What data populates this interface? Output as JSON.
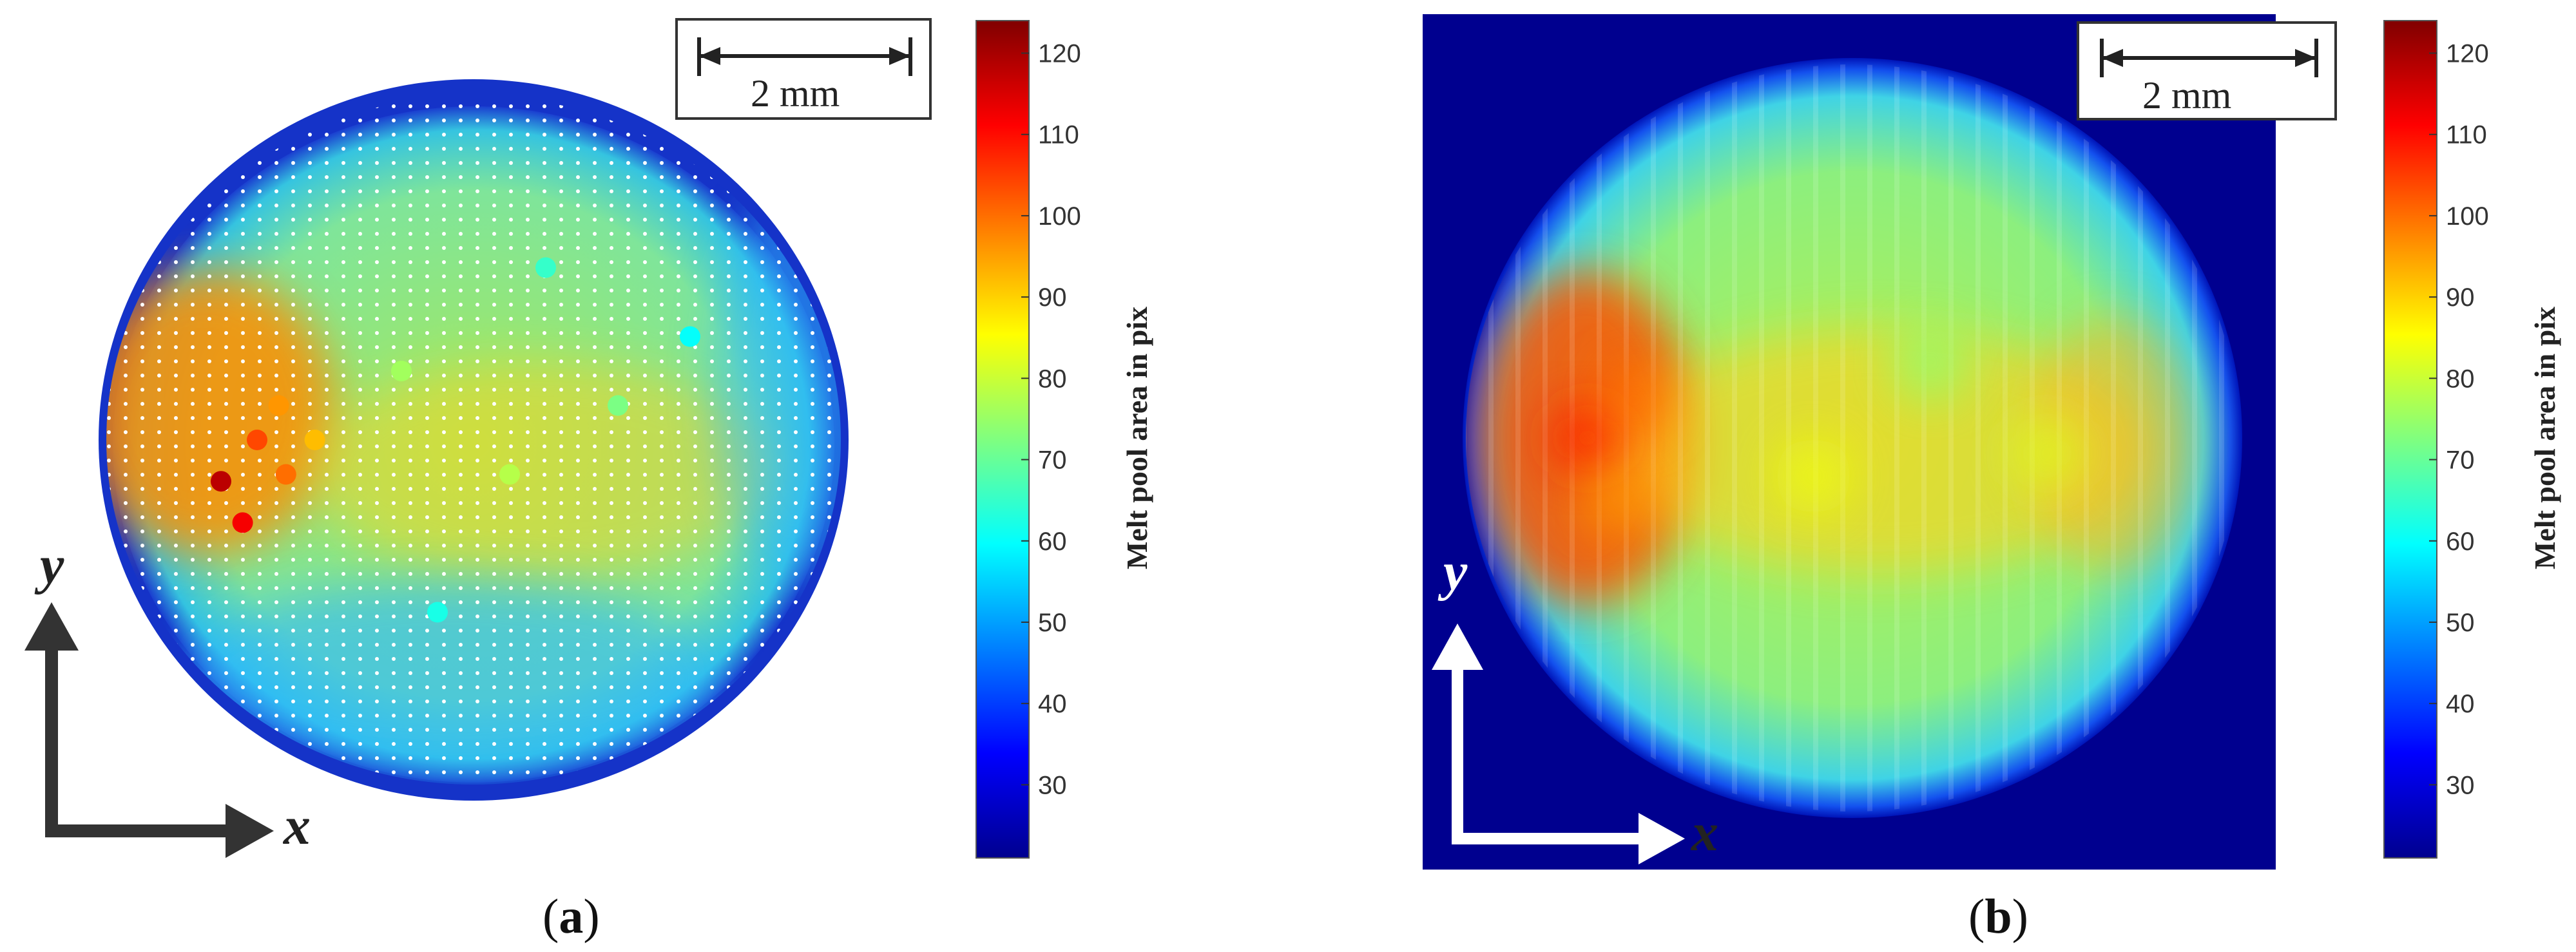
{
  "chart_data": [
    {
      "type": "heatmap",
      "panel": "(a)",
      "panel_letter": "a",
      "colorbar_label": "Melt pool area in pix",
      "clim": [
        21,
        124
      ],
      "ticks": [
        30,
        40,
        50,
        60,
        70,
        80,
        90,
        100,
        110,
        120
      ],
      "scale_bar": "2 mm",
      "axis_x": "x",
      "axis_y": "y",
      "colormap": "jet",
      "background": "#ffffff",
      "style": "scatter points",
      "points": [
        {
          "x": 0.15,
          "y": 0.56,
          "value": 118
        },
        {
          "x": 0.18,
          "y": 0.62,
          "value": 112
        },
        {
          "x": 0.2,
          "y": 0.5,
          "value": 104
        },
        {
          "x": 0.24,
          "y": 0.55,
          "value": 100
        },
        {
          "x": 0.23,
          "y": 0.45,
          "value": 96
        },
        {
          "x": 0.28,
          "y": 0.5,
          "value": 92
        },
        {
          "x": 0.4,
          "y": 0.4,
          "value": 76
        },
        {
          "x": 0.55,
          "y": 0.55,
          "value": 78
        },
        {
          "x": 0.7,
          "y": 0.45,
          "value": 72
        },
        {
          "x": 0.45,
          "y": 0.75,
          "value": 62
        },
        {
          "x": 0.6,
          "y": 0.25,
          "value": 65
        },
        {
          "x": 0.8,
          "y": 0.35,
          "value": 60
        }
      ]
    },
    {
      "type": "heatmap",
      "panel": "(b)",
      "panel_letter": "b",
      "colorbar_label": "Melt pool area in pix",
      "clim": [
        21,
        124
      ],
      "ticks": [
        30,
        40,
        50,
        60,
        70,
        80,
        90,
        100,
        110,
        120
      ],
      "scale_bar": "2 mm",
      "axis_x": "x",
      "axis_y": "y",
      "colormap": "jet",
      "background": "#00008f",
      "style": "interpolated",
      "points": [
        {
          "x": 0.16,
          "y": 0.5,
          "value": 108
        },
        {
          "x": 0.22,
          "y": 0.45,
          "value": 100
        },
        {
          "x": 0.2,
          "y": 0.58,
          "value": 96
        },
        {
          "x": 0.45,
          "y": 0.55,
          "value": 84
        },
        {
          "x": 0.75,
          "y": 0.52,
          "value": 82
        },
        {
          "x": 0.6,
          "y": 0.4,
          "value": 74
        }
      ]
    }
  ]
}
